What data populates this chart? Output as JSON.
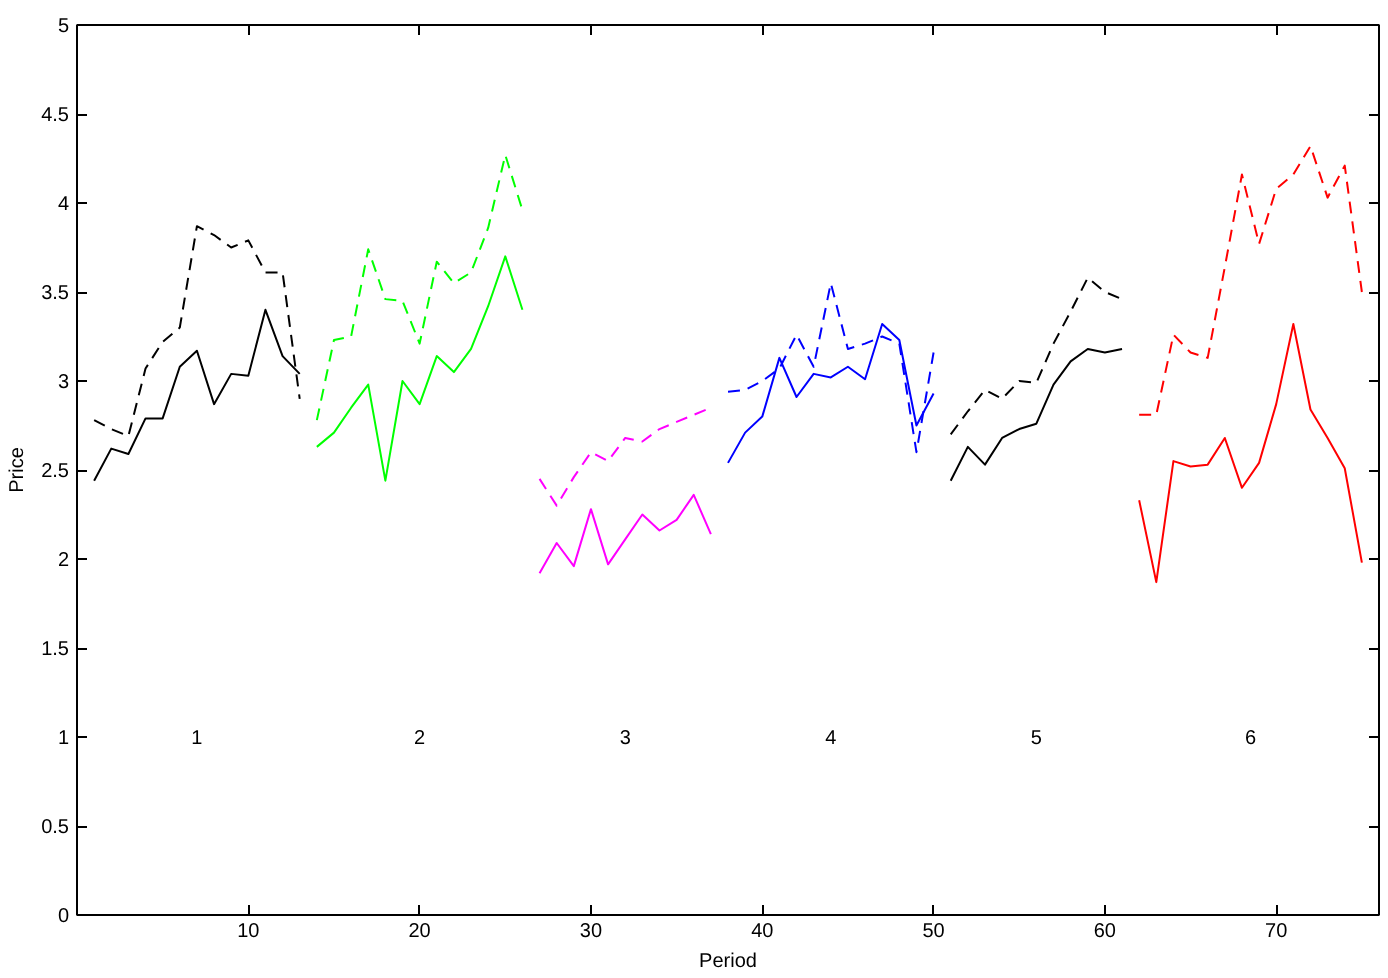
{
  "chart_data": {
    "type": "line",
    "xlabel": "Period",
    "ylabel": "Price",
    "xlim": [
      0,
      76
    ],
    "ylim": [
      0,
      5
    ],
    "xticks": [
      10,
      20,
      30,
      40,
      50,
      60,
      70
    ],
    "yticks": [
      0,
      0.5,
      1,
      1.5,
      2,
      2.5,
      3,
      3.5,
      4,
      4.5,
      5
    ],
    "series": [
      {
        "color": "#000000",
        "line_style": "solid",
        "x": [
          1,
          2,
          3,
          4,
          5,
          6,
          7,
          8,
          9,
          10,
          11,
          12,
          13
        ],
        "values": [
          2.44,
          2.62,
          2.59,
          2.79,
          2.79,
          3.08,
          3.17,
          2.87,
          3.04,
          3.03,
          3.4,
          3.14,
          3.04
        ]
      },
      {
        "color": "#000000",
        "line_style": "dashed",
        "x": [
          1,
          2,
          3,
          4,
          5,
          6,
          7,
          8,
          9,
          10,
          11,
          12,
          13
        ],
        "values": [
          2.78,
          2.73,
          2.69,
          3.07,
          3.22,
          3.3,
          3.87,
          3.82,
          3.75,
          3.79,
          3.61,
          3.61,
          2.9
        ]
      },
      {
        "color": "#00ff00",
        "line_style": "solid",
        "x": [
          14,
          15,
          16,
          17,
          18,
          19,
          20,
          21,
          22,
          23,
          24,
          25,
          26
        ],
        "values": [
          2.63,
          2.71,
          2.85,
          2.98,
          2.44,
          3.0,
          2.87,
          3.14,
          3.05,
          3.18,
          3.42,
          3.7,
          3.4
        ]
      },
      {
        "color": "#00ff00",
        "line_style": "dashed",
        "x": [
          14,
          15,
          16,
          17,
          18,
          19,
          20,
          21,
          22,
          23,
          24,
          25,
          26
        ],
        "values": [
          2.78,
          3.23,
          3.25,
          3.74,
          3.46,
          3.45,
          3.21,
          3.67,
          3.55,
          3.61,
          3.86,
          4.27,
          3.96
        ]
      },
      {
        "color": "#ff00ff",
        "line_style": "solid",
        "x": [
          27,
          28,
          29,
          30,
          31,
          32,
          33,
          34,
          35,
          36,
          37
        ],
        "values": [
          1.92,
          2.09,
          1.96,
          2.28,
          1.97,
          2.11,
          2.25,
          2.16,
          2.22,
          2.36,
          2.14
        ]
      },
      {
        "color": "#ff00ff",
        "line_style": "dashed",
        "x": [
          27,
          28,
          29,
          30,
          31,
          32,
          33,
          34,
          35,
          36,
          37
        ],
        "values": [
          2.45,
          2.3,
          2.46,
          2.6,
          2.55,
          2.68,
          2.66,
          2.73,
          2.77,
          2.81,
          2.85
        ]
      },
      {
        "color": "#0000ff",
        "line_style": "solid",
        "x": [
          38,
          39,
          40,
          41,
          42,
          43,
          44,
          45,
          46,
          47,
          48,
          49,
          50
        ],
        "values": [
          2.54,
          2.71,
          2.8,
          3.13,
          2.91,
          3.04,
          3.02,
          3.08,
          3.01,
          3.32,
          3.23,
          2.75,
          2.93
        ]
      },
      {
        "color": "#0000ff",
        "line_style": "dashed",
        "x": [
          38,
          39,
          40,
          41,
          42,
          43,
          44,
          45,
          46,
          47,
          48,
          49,
          50
        ],
        "values": [
          2.94,
          2.95,
          3.0,
          3.07,
          3.26,
          3.08,
          3.55,
          3.18,
          3.21,
          3.25,
          3.21,
          2.6,
          3.16
        ]
      },
      {
        "color": "#000000",
        "line_style": "solid",
        "x": [
          51,
          52,
          53,
          54,
          55,
          56,
          57,
          58,
          59,
          60,
          61
        ],
        "values": [
          2.44,
          2.63,
          2.53,
          2.68,
          2.73,
          2.76,
          2.98,
          3.11,
          3.18,
          3.16,
          3.18
        ]
      },
      {
        "color": "#000000",
        "line_style": "dashed",
        "x": [
          51,
          52,
          53,
          54,
          55,
          56,
          57,
          58,
          59,
          60,
          61
        ],
        "values": [
          2.7,
          2.83,
          2.95,
          2.9,
          3.0,
          2.99,
          3.21,
          3.39,
          3.58,
          3.5,
          3.46
        ]
      },
      {
        "color": "#ff0000",
        "line_style": "solid",
        "x": [
          62,
          63,
          64,
          65,
          66,
          67,
          68,
          69,
          70,
          71,
          72,
          73,
          74,
          75
        ],
        "values": [
          2.33,
          1.87,
          2.55,
          2.52,
          2.53,
          2.68,
          2.4,
          2.54,
          2.87,
          3.32,
          2.84,
          2.68,
          2.51,
          1.98
        ]
      },
      {
        "color": "#ff0000",
        "line_style": "dashed",
        "x": [
          62,
          63,
          64,
          65,
          66,
          67,
          68,
          69,
          70,
          71,
          72,
          73,
          74,
          75
        ],
        "values": [
          2.81,
          2.81,
          3.26,
          3.16,
          3.13,
          3.64,
          4.16,
          3.77,
          4.08,
          4.16,
          4.32,
          4.03,
          4.21,
          3.5
        ]
      }
    ],
    "annotations": [
      "1",
      "2",
      "3",
      "4",
      "5",
      "6"
    ]
  }
}
